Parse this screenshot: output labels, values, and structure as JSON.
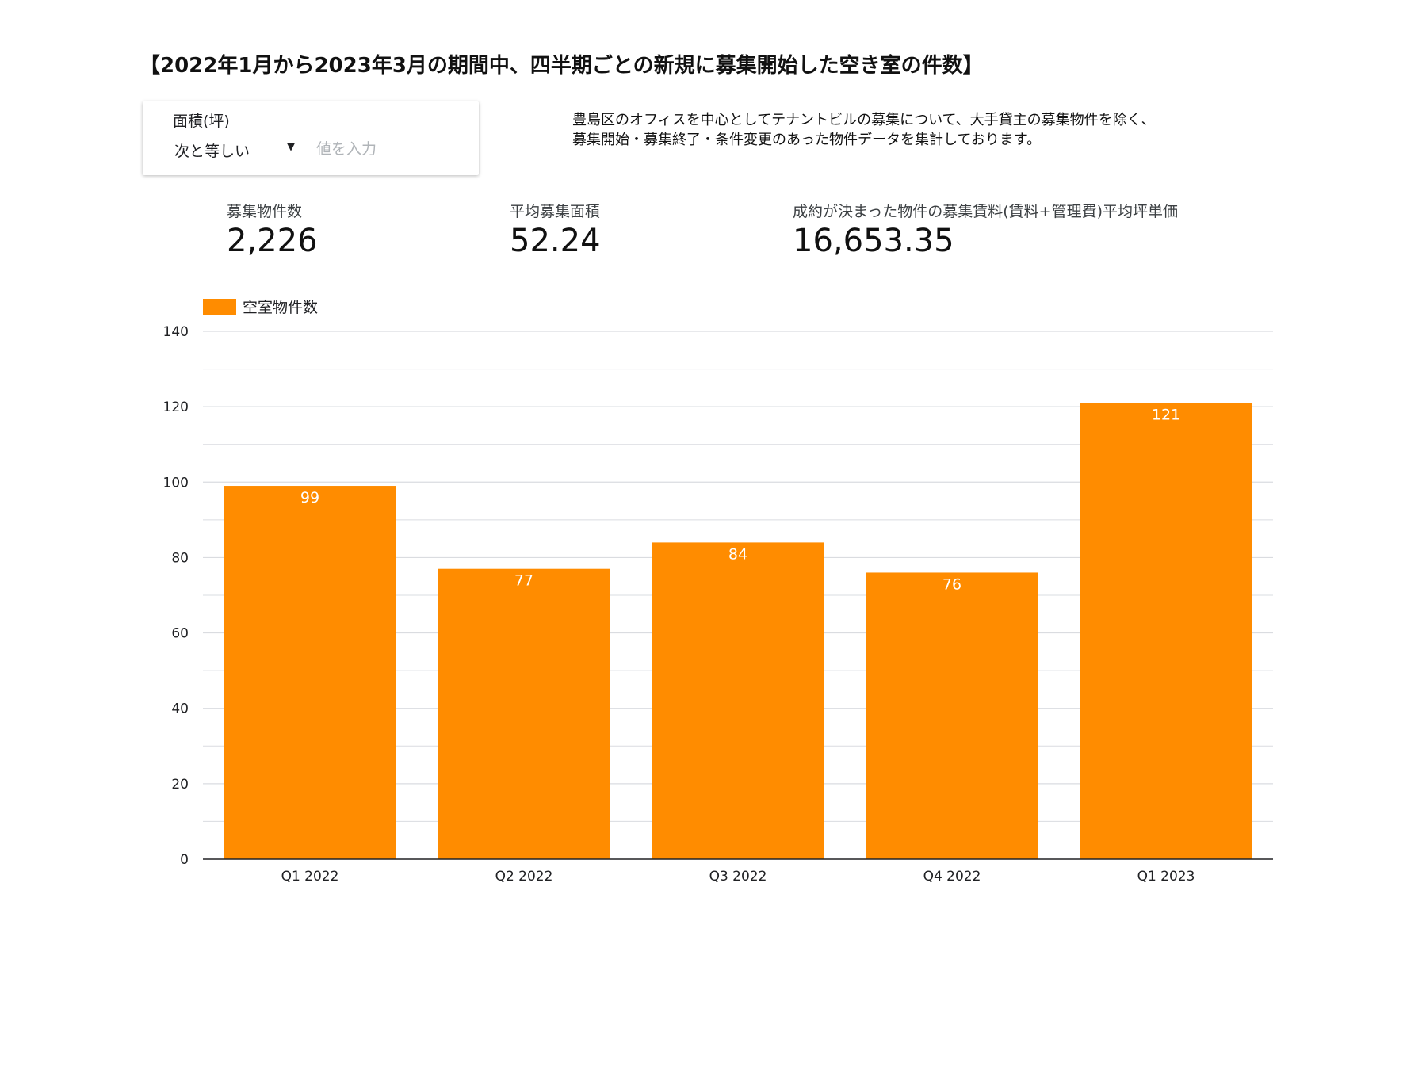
{
  "title": "【2022年1月から2023年3月の期間中、四半期ごとの新規に募集開始した空き室の件数】",
  "filter": {
    "label": "面積(坪)",
    "operator": "次と等しい",
    "input_placeholder": "値を入力",
    "caret_icon": "caret-down-icon"
  },
  "description": {
    "line1": "豊島区のオフィスを中心としてテナントビルの募集について、大手貸主の募集物件を除く、",
    "line2": "募集開始・募集終了・条件変更のあった物件データを集計しております。"
  },
  "kpis": [
    {
      "label": "募集物件数",
      "value": "2,226"
    },
    {
      "label": "平均募集面積",
      "value": "52.24"
    },
    {
      "label": "成約が決まった物件の募集賃料(賃料+管理費)平均坪単価",
      "value": "16,653.35"
    }
  ],
  "colors": {
    "bar": "#FF8C00",
    "grid": "#dadce0",
    "axis": "#202124"
  },
  "chart_data": {
    "type": "bar",
    "categories": [
      "Q1 2022",
      "Q2 2022",
      "Q3 2022",
      "Q4 2022",
      "Q1 2023"
    ],
    "series": [
      {
        "name": "空室物件数",
        "values": [
          99,
          77,
          84,
          76,
          121
        ]
      }
    ],
    "ylim": [
      0,
      140
    ],
    "yticks": [
      0,
      20,
      40,
      60,
      80,
      100,
      120,
      140
    ],
    "grid": true,
    "legend_position": "top-left",
    "data_labels": true
  }
}
